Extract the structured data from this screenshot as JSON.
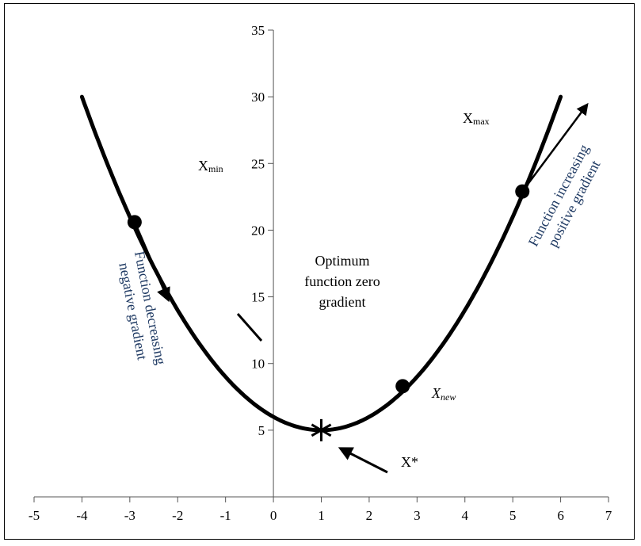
{
  "chart_data": {
    "type": "line",
    "title": "",
    "xlabel": "",
    "ylabel": "",
    "xlim": [
      -5,
      7
    ],
    "ylim": [
      0,
      35
    ],
    "x_ticks": [
      -5,
      -4,
      -3,
      -2,
      -1,
      0,
      1,
      2,
      3,
      4,
      5,
      6,
      7
    ],
    "y_ticks": [
      5,
      10,
      15,
      20,
      25,
      30,
      35
    ],
    "grid": false,
    "series": [
      {
        "curve": "y = (x - 1)^2 + 5",
        "x": [
          -4,
          -3,
          -2,
          -1,
          0,
          1,
          2,
          3,
          4,
          5,
          6
        ],
        "y": [
          30,
          21,
          14,
          9,
          6,
          5,
          6,
          9,
          14,
          21,
          30
        ]
      }
    ],
    "points": [
      {
        "x": -2.9,
        "y": 20.6
      },
      {
        "x": 2.7,
        "y": 8.3
      },
      {
        "x": 5.2,
        "y": 22.9
      }
    ],
    "optimum": {
      "x": 1,
      "y": 5
    }
  },
  "annotations": {
    "x_min": "X",
    "x_min_sub": "min",
    "x_max": "X",
    "x_max_sub": "max",
    "x_new": "X",
    "x_new_sub": "new",
    "x_star": "X*",
    "optimum_line1": "Optimum",
    "optimum_line2": "function zero",
    "optimum_line3": "gradient",
    "left_line1": "Function decreasing",
    "left_line2": "negative gradient",
    "right_line1": "Function increasing",
    "right_line2": "positive gradient"
  },
  "colors": {
    "curve": "#000000",
    "note_text": "#1f3a63"
  }
}
